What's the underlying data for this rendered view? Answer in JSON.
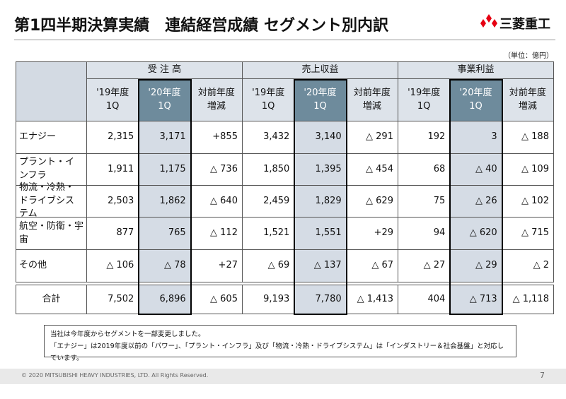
{
  "header": {
    "title": "第1四半期決算実績　連結経営成績 セグメント別内訳",
    "logo": "三菱重工",
    "unit": "（単位：億円）"
  },
  "table": {
    "groups": [
      "受 注 高",
      "売上収益",
      "事業利益"
    ],
    "columns": [
      "'19年度\n1Q",
      "'20年度\n1Q",
      "対前年度\n増減",
      "'19年度\n1Q",
      "'20年度\n1Q",
      "対前年度\n増減",
      "'19年度\n1Q",
      "'20年度\n1Q",
      "対前年度\n増減"
    ],
    "rows": [
      [
        "エナジー",
        "2,315",
        "3,171",
        "+855",
        "3,432",
        "3,140",
        "△ 291",
        "192",
        "3",
        "△ 188"
      ],
      [
        "プラント・インフラ",
        "1,911",
        "1,175",
        "△ 736",
        "1,850",
        "1,395",
        "△ 454",
        "68",
        "△ 40",
        "△ 109"
      ],
      [
        "物流・冷熱・\nドライブシステム",
        "2,503",
        "1,862",
        "△ 640",
        "2,459",
        "1,829",
        "△ 629",
        "75",
        "△ 26",
        "△ 102"
      ],
      [
        "航空・防衛・宇宙",
        "877",
        "765",
        "△ 112",
        "1,521",
        "1,551",
        "+29",
        "94",
        "△ 620",
        "△ 715"
      ],
      [
        "その他",
        "△ 106",
        "△ 78",
        "+27",
        "△ 69",
        "△ 137",
        "△ 67",
        "△ 27",
        "△ 29",
        "△ 2"
      ]
    ],
    "total": [
      "合計",
      "7,502",
      "6,896",
      "△ 605",
      "9,193",
      "7,780",
      "△ 1,413",
      "404",
      "△ 713",
      "△ 1,118"
    ]
  },
  "notes": [
    "当社は今年度からセグメントを一部変更しました。",
    "「エナジー」は2019年度以前の「パワー」、「プラント・インフラ」及び「物流・冷熱・ドライブシステム」は「インダストリー＆社会基盤」と対応しています。"
  ],
  "footer": {
    "copyright": "© 2020 MITSUBISHI HEAVY INDUSTRIES, LTD.  All Rights Reserved.",
    "page": "7"
  }
}
